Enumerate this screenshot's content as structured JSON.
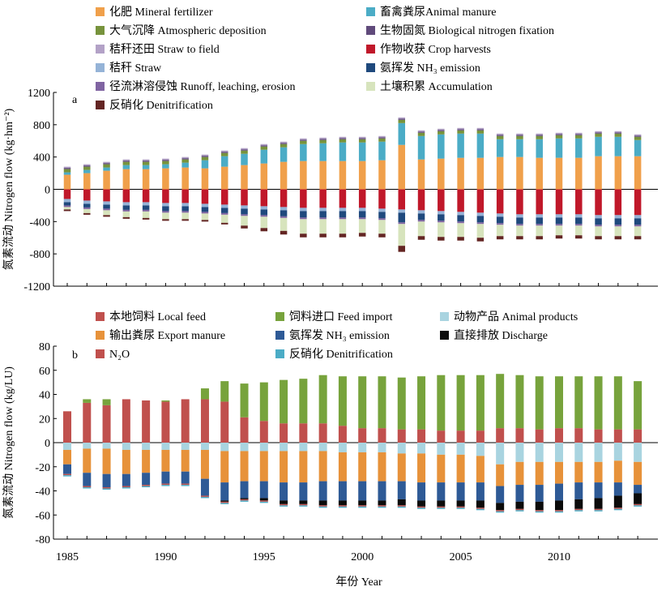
{
  "chart_data": [
    {
      "type": "bar",
      "stacked": true,
      "panel_label": "a",
      "ylabel": "氮素流动 Nitrogen flow (kg·hm⁻²)",
      "ylim": [
        -1200,
        1200
      ],
      "yticks": [
        -1200,
        -800,
        -400,
        0,
        400,
        800,
        1200
      ],
      "x": [
        1985,
        1986,
        1987,
        1988,
        1989,
        1990,
        1991,
        1992,
        1993,
        1994,
        1995,
        1996,
        1997,
        1998,
        1999,
        2000,
        2001,
        2002,
        2003,
        2004,
        2005,
        2006,
        2007,
        2008,
        2009,
        2010,
        2011,
        2012,
        2013,
        2014
      ],
      "legend": {
        "columns": 2,
        "placement": "top-left"
      },
      "series": [
        {
          "name": "化肥 Mineral fertilizer",
          "color": "#F0A04B",
          "values": [
            180,
            200,
            230,
            250,
            250,
            260,
            270,
            260,
            280,
            300,
            320,
            340,
            350,
            350,
            350,
            350,
            360,
            550,
            370,
            380,
            390,
            390,
            400,
            400,
            390,
            390,
            390,
            410,
            410,
            410
          ]
        },
        {
          "name": "畜禽粪尿Animal manure",
          "color": "#4BACC6",
          "values": [
            30,
            40,
            40,
            50,
            50,
            50,
            60,
            100,
            130,
            140,
            170,
            180,
            210,
            220,
            230,
            230,
            230,
            270,
            290,
            300,
            300,
            300,
            220,
            220,
            230,
            240,
            240,
            240,
            240,
            200
          ]
        },
        {
          "name": "大气沉降 Atmospheric deposition",
          "color": "#77933C",
          "values": [
            40,
            40,
            40,
            40,
            40,
            40,
            40,
            40,
            40,
            40,
            40,
            40,
            40,
            40,
            40,
            40,
            40,
            40,
            40,
            40,
            40,
            40,
            40,
            40,
            40,
            40,
            40,
            40,
            40,
            40
          ]
        },
        {
          "name": "生物固氮 Biological nitrogen fixation",
          "color": "#604A7B",
          "values": [
            15,
            15,
            15,
            15,
            15,
            15,
            15,
            15,
            15,
            15,
            15,
            15,
            15,
            15,
            15,
            15,
            15,
            15,
            15,
            15,
            15,
            15,
            15,
            15,
            15,
            15,
            15,
            15,
            15,
            15
          ]
        },
        {
          "name": "秸秆还田 Straw to field",
          "color": "#B3A2C7",
          "values": [
            15,
            15,
            15,
            15,
            15,
            15,
            15,
            15,
            15,
            15,
            15,
            15,
            15,
            15,
            15,
            15,
            15,
            15,
            15,
            15,
            15,
            15,
            15,
            15,
            15,
            15,
            15,
            15,
            15,
            15
          ]
        },
        {
          "name": "作物收获 Crop harvests",
          "color": "#C0182A",
          "values": [
            -120,
            -140,
            -150,
            -160,
            -160,
            -170,
            -170,
            -180,
            -190,
            -200,
            -210,
            -220,
            -230,
            -230,
            -230,
            -230,
            -240,
            -250,
            -260,
            -270,
            -280,
            -290,
            -300,
            -310,
            -310,
            -310,
            -310,
            -320,
            -320,
            -320
          ]
        },
        {
          "name": "秸秆 Straw",
          "color": "#95B3D7",
          "values": [
            -40,
            -40,
            -40,
            -40,
            -40,
            -40,
            -40,
            -40,
            -40,
            -40,
            -40,
            -40,
            -40,
            -40,
            -40,
            -40,
            -40,
            -40,
            -40,
            -40,
            -40,
            -40,
            -40,
            -40,
            -40,
            -40,
            -40,
            -40,
            -40,
            -40
          ]
        },
        {
          "name": "氨挥发 NH₃ emission",
          "color": "#1F497D",
          "values": [
            -40,
            -45,
            -50,
            -55,
            -55,
            -60,
            -60,
            -60,
            -65,
            -70,
            -70,
            -75,
            -80,
            -80,
            -80,
            -80,
            -80,
            -120,
            -80,
            -80,
            -80,
            -80,
            -80,
            -80,
            -80,
            -80,
            -80,
            -80,
            -80,
            -80
          ]
        },
        {
          "name": "径流淋溶侵蚀 Runoff, leaching, erosion",
          "color": "#8064A2",
          "values": [
            -20,
            -20,
            -20,
            -20,
            -20,
            -20,
            -20,
            -20,
            -20,
            -20,
            -20,
            -20,
            -20,
            -20,
            -20,
            -20,
            -20,
            -20,
            -20,
            -20,
            -20,
            -20,
            -20,
            -20,
            -20,
            -20,
            -20,
            -20,
            -20,
            -20
          ]
        },
        {
          "name": "土壤积累 Accumulation",
          "color": "#D7E4BD",
          "values": [
            -30,
            -50,
            -60,
            -70,
            -80,
            -80,
            -80,
            -80,
            -100,
            -120,
            -140,
            -160,
            -180,
            -180,
            -180,
            -170,
            -170,
            -270,
            -180,
            -180,
            -170,
            -170,
            -140,
            -130,
            -130,
            -120,
            -120,
            -120,
            -120,
            -120
          ]
        },
        {
          "name": "反硝化 Denitrification",
          "color": "#632523",
          "values": [
            -20,
            -20,
            -20,
            -20,
            -20,
            -20,
            -20,
            -20,
            -20,
            -35,
            -40,
            -45,
            -45,
            -45,
            -45,
            -45,
            -45,
            -75,
            -45,
            -45,
            -45,
            -45,
            -40,
            -40,
            -40,
            -40,
            -40,
            -40,
            -40,
            -40
          ]
        }
      ]
    },
    {
      "type": "bar",
      "stacked": true,
      "panel_label": "b",
      "ylabel": "氮素流动 Nitrogen flow (kg/LU)",
      "xlabel": "年份 Year",
      "ylim": [
        -80,
        80
      ],
      "yticks": [
        -80,
        -60,
        -40,
        -20,
        0,
        20,
        40,
        60,
        80
      ],
      "xticks": [
        1985,
        1990,
        1995,
        2000,
        2005,
        2010
      ],
      "x": [
        1985,
        1986,
        1987,
        1988,
        1989,
        1990,
        1991,
        1992,
        1993,
        1994,
        1995,
        1996,
        1997,
        1998,
        1999,
        2000,
        2001,
        2002,
        2003,
        2004,
        2005,
        2006,
        2007,
        2008,
        2009,
        2010,
        2011,
        2012,
        2013,
        2014
      ],
      "legend": {
        "columns": 3,
        "placement": "top-left"
      },
      "series": [
        {
          "name": "本地饲料 Local feed",
          "color": "#C0504D",
          "values": [
            26,
            33,
            31,
            36,
            35,
            34,
            36,
            36,
            34,
            21,
            18,
            16,
            16,
            16,
            14,
            12,
            12,
            11,
            11,
            10,
            10,
            10,
            12,
            12,
            11,
            12,
            12,
            11,
            11,
            11
          ]
        },
        {
          "name": "饲料进口 Feed import",
          "color": "#77A33C",
          "values": [
            0,
            3,
            5,
            0,
            0,
            1,
            0,
            9,
            17,
            28,
            32,
            36,
            37,
            40,
            41,
            43,
            43,
            43,
            44,
            46,
            46,
            46,
            45,
            44,
            44,
            43,
            43,
            44,
            44,
            40
          ]
        },
        {
          "name": "动物产品 Animal products",
          "color": "#A9D4E0",
          "values": [
            -6,
            -5,
            -5,
            -6,
            -6,
            -6,
            -6,
            -6,
            -7,
            -7,
            -7,
            -7,
            -7,
            -7,
            -8,
            -8,
            -8,
            -9,
            -9,
            -10,
            -10,
            -11,
            -18,
            -16,
            -16,
            -16,
            -16,
            -16,
            -15,
            -16
          ]
        },
        {
          "name": "输出粪尿 Export manure",
          "color": "#E7923A",
          "values": [
            -12,
            -20,
            -21,
            -20,
            -19,
            -18,
            -18,
            -24,
            -26,
            -25,
            -25,
            -26,
            -26,
            -25,
            -24,
            -24,
            -24,
            -23,
            -24,
            -23,
            -23,
            -22,
            -18,
            -19,
            -19,
            -18,
            -17,
            -17,
            -18,
            -19
          ]
        },
        {
          "name": "氨挥发 NH₃ emission",
          "color": "#2E5A96",
          "values": [
            -8,
            -11,
            -11,
            -10,
            -10,
            -10,
            -10,
            -14,
            -15,
            -14,
            -14,
            -15,
            -15,
            -16,
            -16,
            -16,
            -16,
            -15,
            -15,
            -15,
            -15,
            -15,
            -14,
            -14,
            -14,
            -14,
            -14,
            -13,
            -11,
            -7
          ]
        },
        {
          "name": "直接排放 Discharge",
          "color": "#0B0B0B",
          "values": [
            0,
            0,
            0,
            0,
            0,
            0,
            0,
            0,
            -1,
            -1,
            -2,
            -3,
            -3,
            -4,
            -4,
            -4,
            -4,
            -5,
            -5,
            -5,
            -5,
            -6,
            -6,
            -6,
            -7,
            -8,
            -8,
            -9,
            -10,
            -9
          ]
        },
        {
          "name": "N₂O",
          "color": "#C0504D",
          "values": [
            -1,
            -1,
            -1,
            -1,
            -1,
            -1,
            -1,
            -1,
            -1,
            -1,
            -1,
            -1,
            -1,
            -1,
            -1,
            -1,
            -1,
            -1,
            -1,
            -1,
            -1,
            -1,
            -1,
            -1,
            -1,
            -1,
            -1,
            -1,
            -1,
            -1
          ]
        },
        {
          "name": "反硝化 Denitrification",
          "color": "#4BACC6",
          "values": [
            -1,
            -1,
            -1,
            -1,
            -1,
            -1,
            -1,
            -1,
            -1,
            -1,
            -1,
            -1,
            -1,
            -1,
            -1,
            -1,
            -1,
            -1,
            -1,
            -1,
            -1,
            -1,
            -1,
            -1,
            -1,
            -1,
            -1,
            -1,
            -1,
            -1
          ]
        }
      ]
    }
  ]
}
